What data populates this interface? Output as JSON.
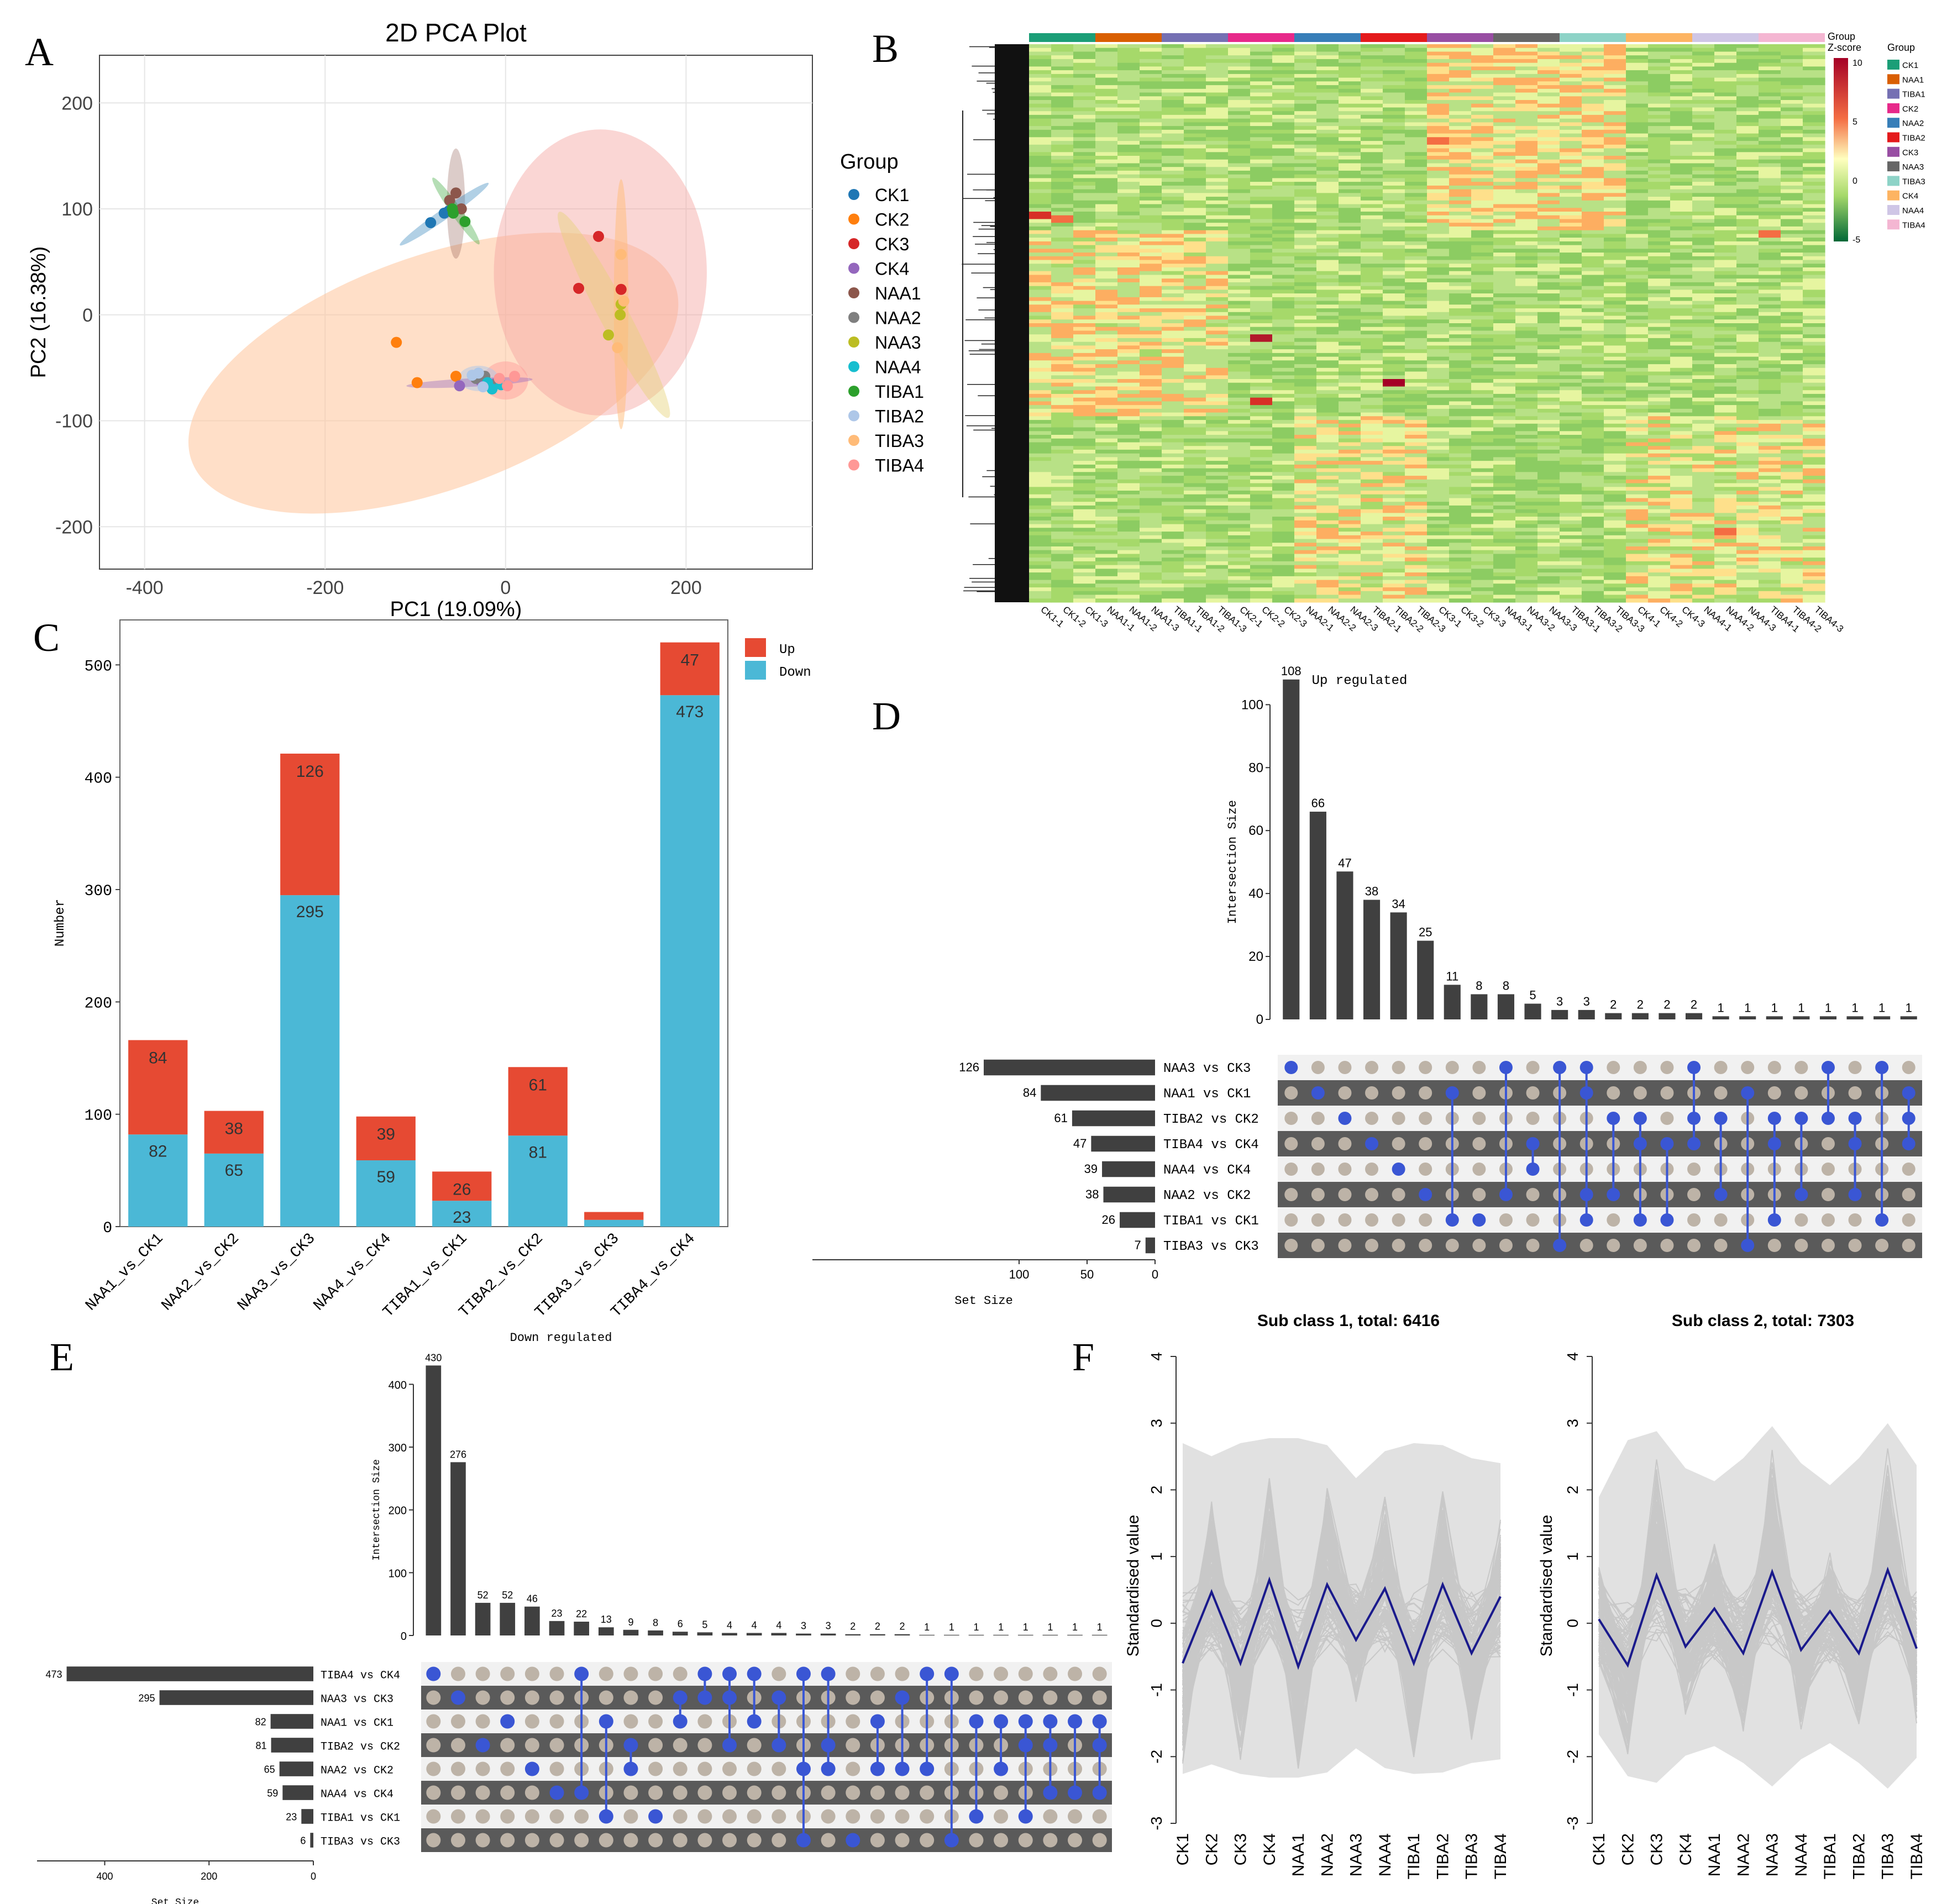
{
  "figure": {
    "panel_letters": {
      "A": "A",
      "B": "B",
      "C": "C",
      "D": "D",
      "E": "E",
      "F": "F"
    }
  },
  "chart_data": [
    {
      "id": "A",
      "type": "scatter",
      "title": "2D PCA Plot",
      "xlabel": "PC1 (19.09%)",
      "ylabel": "PC2 (16.38%)",
      "xlim": [
        -450,
        340
      ],
      "ylim": [
        -240,
        245
      ],
      "xticks": [
        -400,
        -200,
        0,
        200
      ],
      "yticks": [
        -200,
        -100,
        0,
        100,
        200
      ],
      "legend_title": "Group",
      "groups": [
        {
          "name": "CK1",
          "color": "#1f77b4",
          "points": [
            [
              -83,
              87
            ],
            [
              -68,
              96
            ],
            [
              -63,
              98
            ]
          ]
        },
        {
          "name": "CK2",
          "color": "#ff7f0e",
          "points": [
            [
              -121,
              -26
            ],
            [
              -98,
              -64
            ],
            [
              -55,
              -58
            ]
          ]
        },
        {
          "name": "CK3",
          "color": "#d62728",
          "points": [
            [
              103,
              74
            ],
            [
              81,
              25
            ],
            [
              128,
              24
            ]
          ]
        },
        {
          "name": "CK4",
          "color": "#9467bd",
          "points": [
            [
              -51,
              -67
            ],
            [
              -28,
              -62
            ],
            [
              -12,
              -65
            ]
          ]
        },
        {
          "name": "NAA1",
          "color": "#8c564b",
          "points": [
            [
              -55,
              115
            ],
            [
              -62,
              108
            ],
            [
              -49,
              100
            ]
          ]
        },
        {
          "name": "NAA2",
          "color": "#7f7f7f",
          "points": [
            [
              -23,
              -58
            ],
            [
              -10,
              -65
            ],
            [
              -33,
              -60
            ]
          ]
        },
        {
          "name": "NAA3",
          "color": "#bcbd22",
          "points": [
            [
              114,
              -19
            ],
            [
              128,
              10
            ],
            [
              127,
              0
            ]
          ]
        },
        {
          "name": "NAA4",
          "color": "#17becf",
          "points": [
            [
              -15,
              -70
            ],
            [
              -5,
              -66
            ],
            [
              -20,
              -64
            ]
          ]
        },
        {
          "name": "TIBA1",
          "color": "#2ca02c",
          "points": [
            [
              -59,
              100
            ],
            [
              -45,
              88
            ],
            [
              -58,
              96
            ]
          ]
        },
        {
          "name": "TIBA2",
          "color": "#aec7e8",
          "points": [
            [
              -37,
              -57
            ],
            [
              -30,
              -55
            ],
            [
              -25,
              -68
            ]
          ]
        },
        {
          "name": "TIBA3",
          "color": "#ffbb78",
          "points": [
            [
              128,
              57
            ],
            [
              124,
              -31
            ],
            [
              131,
              13
            ]
          ]
        },
        {
          "name": "TIBA4",
          "color": "#ff9896",
          "points": [
            [
              -7,
              -60
            ],
            [
              10,
              -58
            ],
            [
              2,
              -67
            ]
          ]
        }
      ]
    },
    {
      "id": "B",
      "type": "heatmap",
      "legend_title": "Group",
      "scale_title": "Z-score",
      "scale_ticks": [
        10,
        5,
        0,
        -5
      ],
      "samples": [
        "CK1-1",
        "CK1-2",
        "CK1-3",
        "NAA1-1",
        "NAA1-2",
        "NAA1-3",
        "TIBA1-1",
        "TIBA1-2",
        "TIBA1-3",
        "CK2-1",
        "CK2-2",
        "CK2-3",
        "NAA2-1",
        "NAA2-2",
        "NAA2-3",
        "TIBA2-1",
        "TIBA2-2",
        "TIBA2-3",
        "CK3-1",
        "CK3-2",
        "CK3-3",
        "NAA3-1",
        "NAA3-2",
        "NAA3-3",
        "TIBA3-1",
        "TIBA3-2",
        "TIBA3-3",
        "CK4-1",
        "CK4-2",
        "CK4-3",
        "NAA4-1",
        "NAA4-2",
        "NAA4-3",
        "TIBA4-1",
        "TIBA4-2",
        "TIBA4-3"
      ],
      "groups": [
        {
          "name": "CK1",
          "color": "#1b9e77"
        },
        {
          "name": "NAA1",
          "color": "#d95f02"
        },
        {
          "name": "TIBA1",
          "color": "#7570b3"
        },
        {
          "name": "CK2",
          "color": "#e7298a"
        },
        {
          "name": "NAA2",
          "color": "#377eb8"
        },
        {
          "name": "TIBA2",
          "color": "#e41a1c"
        },
        {
          "name": "CK3",
          "color": "#984ea3"
        },
        {
          "name": "NAA3",
          "color": "#666666"
        },
        {
          "name": "TIBA3",
          "color": "#8dd3c7"
        },
        {
          "name": "CK4",
          "color": "#fdb462"
        },
        {
          "name": "NAA4",
          "color": "#cfc6e6"
        },
        {
          "name": "TIBA4",
          "color": "#f4b6d2"
        }
      ]
    },
    {
      "id": "C",
      "type": "bar",
      "stacked": true,
      "ylabel": "Number",
      "ylim": [
        0,
        540
      ],
      "yticks": [
        0,
        100,
        200,
        300,
        400,
        500
      ],
      "categories": [
        "NAA1_vs_CK1",
        "NAA2_vs_CK2",
        "NAA3_vs_CK3",
        "NAA4_vs_CK4",
        "TIBA1_vs_CK1",
        "TIBA2_vs_CK2",
        "TIBA3_vs_CK3",
        "TIBA4_vs_CK4"
      ],
      "series": [
        {
          "name": "Down",
          "color": "#4bb8d6",
          "values": [
            82,
            65,
            295,
            59,
            23,
            81,
            6,
            473
          ],
          "labels": [
            "82",
            "65",
            "295",
            "59",
            "23",
            "81",
            "",
            "473"
          ]
        },
        {
          "name": "Up",
          "color": "#e64a33",
          "values": [
            84,
            38,
            126,
            39,
            26,
            61,
            7,
            47
          ],
          "labels": [
            "84",
            "38",
            "126",
            "39",
            "26",
            "61",
            "",
            "47"
          ]
        }
      ]
    },
    {
      "id": "D",
      "type": "upset",
      "title": "Up regulated",
      "ylabel": "Intersection Size",
      "xlabel": "Set Size",
      "ylim": [
        0,
        112
      ],
      "yticks": [
        0,
        20,
        40,
        60,
        80,
        100
      ],
      "set_xticks": [
        100,
        50,
        0
      ],
      "set_xmax": 126,
      "sets": [
        "NAA3 vs CK3",
        "NAA1 vs CK1",
        "TIBA2 vs CK2",
        "TIBA4 vs CK4",
        "NAA4 vs CK4",
        "NAA2 vs CK2",
        "TIBA1 vs CK1",
        "TIBA3 vs CK3"
      ],
      "set_sizes": [
        126,
        84,
        61,
        47,
        39,
        38,
        26,
        7
      ],
      "intersection_sizes": [
        108,
        66,
        47,
        38,
        34,
        25,
        11,
        8,
        8,
        5,
        3,
        3,
        2,
        2,
        2,
        2,
        1,
        1,
        1,
        1,
        1,
        1,
        1,
        1
      ],
      "intersections": [
        [
          0
        ],
        [
          1
        ],
        [
          2
        ],
        [
          3
        ],
        [
          4
        ],
        [
          5
        ],
        [
          1,
          6
        ],
        [
          6
        ],
        [
          0,
          5
        ],
        [
          3,
          4
        ],
        [
          0,
          7
        ],
        [
          0,
          1,
          5,
          6
        ],
        [
          2,
          5
        ],
        [
          2,
          3,
          6
        ],
        [
          3,
          6
        ],
        [
          0,
          2,
          3
        ],
        [
          2,
          5
        ],
        [
          1,
          7
        ],
        [
          2,
          3,
          6
        ],
        [
          2,
          5
        ],
        [
          0,
          2
        ],
        [
          2,
          3,
          5
        ],
        [
          0,
          6
        ],
        [
          1,
          2,
          3
        ]
      ]
    },
    {
      "id": "E",
      "type": "upset",
      "title": "Down regulated",
      "ylabel": "Intersection Size",
      "xlabel": "Set Size",
      "ylim": [
        0,
        440
      ],
      "yticks": [
        0,
        100,
        200,
        300,
        400
      ],
      "set_xticks": [
        400,
        200,
        0
      ],
      "set_xmax": 473,
      "sets": [
        "TIBA4 vs CK4",
        "NAA3 vs CK3",
        "NAA1 vs CK1",
        "TIBA2 vs CK2",
        "NAA2 vs CK2",
        "NAA4 vs CK4",
        "TIBA1 vs CK1",
        "TIBA3 vs CK3"
      ],
      "set_sizes": [
        473,
        295,
        82,
        81,
        65,
        59,
        23,
        6
      ],
      "intersection_sizes": [
        430,
        276,
        52,
        52,
        46,
        23,
        22,
        13,
        9,
        8,
        6,
        5,
        4,
        4,
        4,
        3,
        3,
        2,
        2,
        2,
        1,
        1,
        1,
        1,
        1,
        1,
        1,
        1
      ],
      "intersections": [
        [
          0
        ],
        [
          1
        ],
        [
          3
        ],
        [
          2
        ],
        [
          4
        ],
        [
          5
        ],
        [
          0,
          5
        ],
        [
          2,
          6
        ],
        [
          3,
          4
        ],
        [
          6
        ],
        [
          1,
          2
        ],
        [
          0,
          1
        ],
        [
          0,
          1,
          3
        ],
        [
          0,
          2
        ],
        [
          1,
          3
        ],
        [
          0,
          4,
          7
        ],
        [
          0,
          3,
          4
        ],
        [
          7
        ],
        [
          2,
          4
        ],
        [
          1,
          4
        ],
        [
          0,
          4
        ],
        [
          0,
          7
        ],
        [
          2,
          6
        ],
        [
          2,
          4
        ],
        [
          2,
          3,
          6
        ],
        [
          2,
          3,
          5
        ],
        [
          2,
          5
        ],
        [
          2,
          3,
          5
        ]
      ]
    },
    {
      "id": "F",
      "type": "line",
      "ylabel": "Standardised value",
      "categories": [
        "CK1",
        "CK2",
        "CK3",
        "CK4",
        "NAA1",
        "NAA2",
        "NAA3",
        "NAA4",
        "TIBA1",
        "TIBA2",
        "TIBA3",
        "TIBA4"
      ],
      "ylim": [
        -3,
        4
      ],
      "yticks": [
        -3,
        -2,
        -1,
        0,
        1,
        2,
        3,
        4
      ],
      "panels": [
        {
          "title": "Sub class 1, total: 6416",
          "mean": [
            -0.6,
            0.47,
            -0.6,
            0.65,
            -0.65,
            0.58,
            -0.25,
            0.52,
            -0.6,
            0.58,
            -0.45,
            0.4
          ]
        },
        {
          "title": "Sub class 2, total: 7303",
          "mean": [
            0.06,
            -0.63,
            0.72,
            -0.35,
            0.22,
            -0.45,
            0.77,
            -0.4,
            0.18,
            -0.45,
            0.8,
            -0.38
          ]
        }
      ]
    }
  ]
}
